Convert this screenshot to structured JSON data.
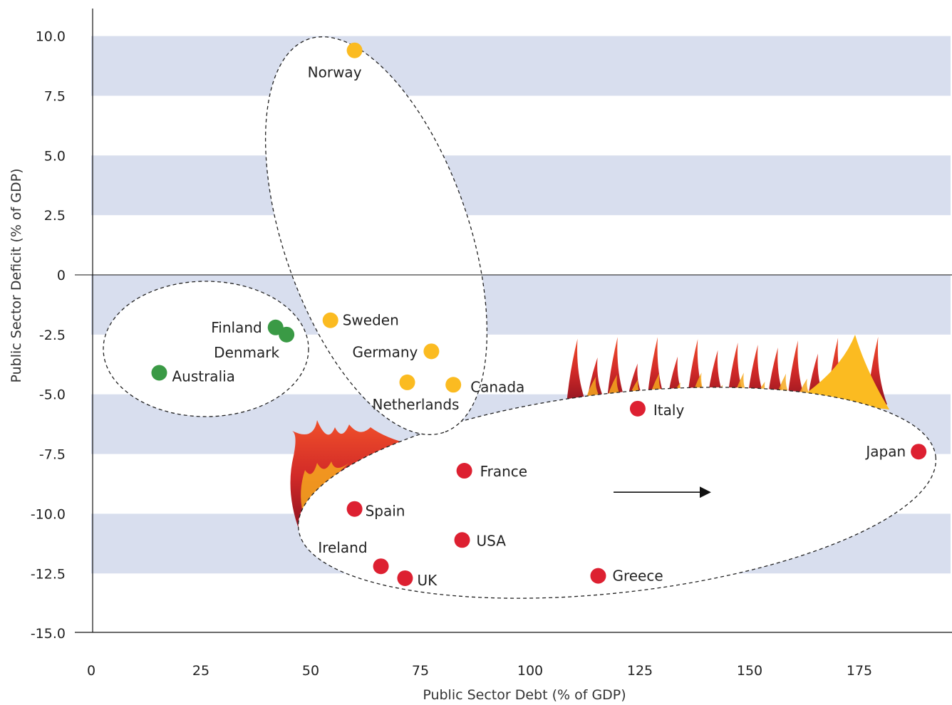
{
  "chart_data": {
    "type": "scatter",
    "title": "",
    "xlabel": "Public Sector Debt (% of GDP)",
    "ylabel": "Public Sector Deficit (% of GDP)",
    "xlim": [
      0,
      195
    ],
    "ylim": [
      -15,
      11
    ],
    "xticks": [
      "0",
      "25",
      "50",
      "75",
      "100",
      "125",
      "150",
      "175"
    ],
    "yticks": [
      "10.0",
      "7.5",
      "5.0",
      "2.5",
      "0",
      "-2.5",
      "-5.0",
      "-7.5",
      "-10.0",
      "-12.5",
      "-15.0"
    ],
    "background_bands": "alternating light blue horizontal stripes every 2.5 units",
    "groups": {
      "green": "#3a9a45",
      "yellow": "#fbbb21",
      "red": "#dd2031"
    },
    "band_color": "#d8deee",
    "points": [
      {
        "label": "Australia",
        "x": 15.5,
        "y": -4.1,
        "group": "green"
      },
      {
        "label": "Finland",
        "x": 42,
        "y": -2.2,
        "group": "green"
      },
      {
        "label": "Denmark",
        "x": 44.5,
        "y": -2.5,
        "group": "green"
      },
      {
        "label": "Norway",
        "x": 60,
        "y": 9.4,
        "group": "yellow"
      },
      {
        "label": "Sweden",
        "x": 54.5,
        "y": -1.9,
        "group": "yellow"
      },
      {
        "label": "Germany",
        "x": 77.5,
        "y": -3.2,
        "group": "yellow"
      },
      {
        "label": "Netherlands",
        "x": 72,
        "y": -4.5,
        "group": "yellow"
      },
      {
        "label": "Canada",
        "x": 82.5,
        "y": -4.6,
        "group": "yellow"
      },
      {
        "label": "Italy",
        "x": 124.5,
        "y": -5.6,
        "group": "red"
      },
      {
        "label": "Japan",
        "x": 188.5,
        "y": -7.4,
        "group": "red"
      },
      {
        "label": "France",
        "x": 85,
        "y": -8.2,
        "group": "red"
      },
      {
        "label": "Spain",
        "x": 60,
        "y": -9.8,
        "group": "red"
      },
      {
        "label": "USA",
        "x": 84.5,
        "y": -11.1,
        "group": "red"
      },
      {
        "label": "Ireland",
        "x": 66,
        "y": -12.2,
        "group": "red"
      },
      {
        "label": "UK",
        "x": 71.5,
        "y": -12.7,
        "group": "red"
      },
      {
        "label": "Greece",
        "x": 115.5,
        "y": -12.6,
        "group": "red"
      }
    ],
    "annotations": [
      {
        "type": "arrow",
        "direction": "right",
        "from": [
          119,
          -9.1
        ],
        "to": [
          142,
          -9.1
        ]
      }
    ]
  }
}
